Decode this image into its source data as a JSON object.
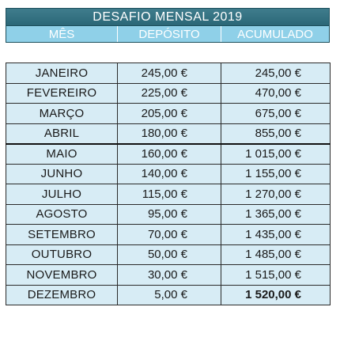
{
  "title": "DESAFIO MENSAL 2019",
  "headers": [
    "MÊS",
    "DEPÓSITO",
    "ACUMULADO"
  ],
  "rows": [
    {
      "mes": "JANEIRO",
      "deposito": "245,00 €",
      "acumulado": "245,00 €"
    },
    {
      "mes": "FEVEREIRO",
      "deposito": "225,00 €",
      "acumulado": "470,00 €"
    },
    {
      "mes": "MARÇO",
      "deposito": "205,00 €",
      "acumulado": "675,00 €"
    },
    {
      "mes": "ABRIL",
      "deposito": "180,00 €",
      "acumulado": "855,00 €"
    },
    {
      "mes": "MAIO",
      "deposito": "160,00 €",
      "acumulado": "1 015,00 €"
    },
    {
      "mes": "JUNHO",
      "deposito": "140,00 €",
      "acumulado": "1 155,00 €"
    },
    {
      "mes": "JULHO",
      "deposito": "115,00 €",
      "acumulado": "1 270,00 €"
    },
    {
      "mes": "AGOSTO",
      "deposito": "95,00 €",
      "acumulado": "1 365,00 €"
    },
    {
      "mes": "SETEMBRO",
      "deposito": "70,00 €",
      "acumulado": "1 435,00 €"
    },
    {
      "mes": "OUTUBRO",
      "deposito": "50,00 €",
      "acumulado": "1 485,00 €"
    },
    {
      "mes": "NOVEMBRO",
      "deposito": "30,00 €",
      "acumulado": "1 515,00 €"
    },
    {
      "mes": "DEZEMBRO",
      "deposito": "5,00 €",
      "acumulado": "1 520,00 €"
    }
  ],
  "colors": {
    "banner": "#2b6777",
    "header": "#8fd0e8",
    "cell": "#d7ecf5"
  }
}
